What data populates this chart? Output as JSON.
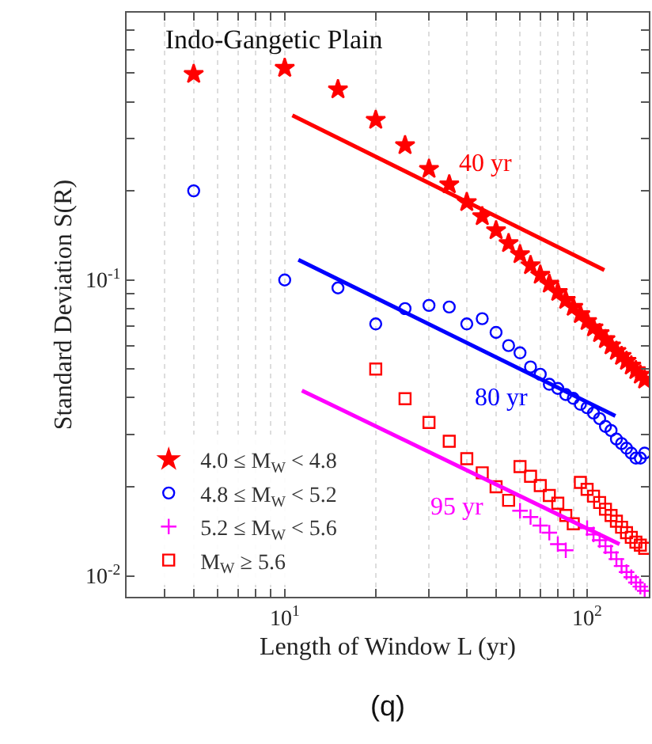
{
  "chart_data": {
    "type": "scatter",
    "title": "Indo-Gangetic Plain",
    "xlabel": "Length of Window L (yr)",
    "ylabel": "Standard Deviation S(R)",
    "log": "xy",
    "grid": "x",
    "legend": "bottom left",
    "xlim": [
      3,
      160
    ],
    "ylim": [
      0.0085,
      0.8
    ],
    "xticks": [
      {
        "value": 3,
        "label": null
      },
      {
        "value": 4,
        "label": null
      },
      {
        "value": 5,
        "label": null
      },
      {
        "value": 6,
        "label": null
      },
      {
        "value": 7,
        "label": null
      },
      {
        "value": 8,
        "label": null
      },
      {
        "value": 9,
        "label": null
      },
      {
        "value": 10,
        "label": "10$^{1}$"
      },
      {
        "value": 20,
        "label": null
      },
      {
        "value": 30,
        "label": null
      },
      {
        "value": 40,
        "label": null
      },
      {
        "value": 50,
        "label": null
      },
      {
        "value": 60,
        "label": null
      },
      {
        "value": 70,
        "label": null
      },
      {
        "value": 80,
        "label": null
      },
      {
        "value": 90,
        "label": null
      },
      {
        "value": 100,
        "label": "10$^{2}$"
      }
    ],
    "yticks": [
      {
        "value": 0.01,
        "label": "10$^{-2}$"
      },
      {
        "value": 0.02,
        "label": null
      },
      {
        "value": 0.03,
        "label": null
      },
      {
        "value": 0.04,
        "label": null
      },
      {
        "value": 0.05,
        "label": null
      },
      {
        "value": 0.06,
        "label": null
      },
      {
        "value": 0.07,
        "label": null
      },
      {
        "value": 0.08,
        "label": null
      },
      {
        "value": 0.09,
        "label": null
      },
      {
        "value": 0.1,
        "label": "10$^{-1}$"
      },
      {
        "value": 0.2,
        "label": null
      },
      {
        "value": 0.3,
        "label": null
      },
      {
        "value": 0.4,
        "label": null
      },
      {
        "value": 0.5,
        "label": null
      },
      {
        "value": 0.6,
        "label": null
      },
      {
        "value": 0.7,
        "label": null
      }
    ],
    "series": [
      {
        "name": "4.0 ≤ M$_{W}$ < 4.8",
        "color": "#ff0000",
        "marker": "star",
        "x": [
          5,
          10,
          15,
          20,
          25,
          30,
          35,
          40,
          45,
          50,
          55,
          60,
          65,
          70,
          75,
          80,
          85,
          90,
          95,
          100,
          105,
          110,
          115,
          120,
          125,
          130,
          135,
          140,
          145,
          150,
          155
        ],
        "values": [
          0.496,
          0.52,
          0.44,
          0.347,
          0.285,
          0.237,
          0.21,
          0.183,
          0.164,
          0.147,
          0.133,
          0.122,
          0.112,
          0.104,
          0.097,
          0.091,
          0.0855,
          0.081,
          0.0765,
          0.0725,
          0.069,
          0.066,
          0.063,
          0.06,
          0.0575,
          0.0553,
          0.0532,
          0.0513,
          0.0495,
          0.0478,
          0.046
        ]
      },
      {
        "name": "4.8 ≤ M$_{W}$ < 5.2",
        "color": "#0000ff",
        "marker": "circle",
        "x": [
          5,
          10,
          15,
          20,
          25,
          30,
          35,
          40,
          45,
          50,
          55,
          60,
          65,
          70,
          75,
          80,
          85,
          90,
          95,
          100,
          105,
          110,
          115,
          120,
          125,
          130,
          135,
          140,
          145,
          150,
          155
        ],
        "values": [
          0.2,
          0.1,
          0.094,
          0.071,
          0.08,
          0.082,
          0.081,
          0.071,
          0.074,
          0.0665,
          0.06,
          0.0567,
          0.0508,
          0.048,
          0.0444,
          0.043,
          0.041,
          0.0398,
          0.038,
          0.037,
          0.0355,
          0.034,
          0.032,
          0.031,
          0.029,
          0.028,
          0.027,
          0.026,
          0.025,
          0.025,
          0.026
        ]
      },
      {
        "name": "5.2 ≤ M$_{W}$ < 5.6",
        "color": "#ff00ff",
        "marker": "cross",
        "x": [
          60,
          65,
          70,
          75,
          80,
          85,
          90,
          95,
          100,
          105,
          110,
          115,
          120,
          125,
          130,
          135,
          140,
          145,
          150,
          155
        ],
        "values": [
          0.0166,
          0.0158,
          0.0148,
          0.014,
          0.0128,
          0.0122,
          null,
          null,
          0.0145,
          0.0138,
          0.0132,
          0.0126,
          0.012,
          0.0114,
          0.0108,
          0.0103,
          0.0099,
          0.0095,
          0.0092,
          0.0089
        ]
      },
      {
        "name": "M$_{W}$ ≥ 5.6",
        "color": "#ff0000",
        "marker": "square",
        "x": [
          20,
          25,
          30,
          35,
          40,
          45,
          50,
          55,
          60,
          65,
          70,
          75,
          80,
          85,
          90,
          95,
          100,
          105,
          110,
          115,
          120,
          125,
          130,
          135,
          140,
          145,
          150,
          155
        ],
        "values": [
          0.05,
          0.0397,
          0.033,
          0.0285,
          0.0249,
          0.0223,
          0.02,
          0.018,
          0.0234,
          0.0217,
          0.0202,
          0.0187,
          0.0176,
          0.016,
          0.015,
          0.0207,
          0.0196,
          0.0186,
          0.0177,
          0.0168,
          0.016,
          0.0153,
          0.0146,
          0.014,
          0.0135,
          0.013,
          0.0127,
          0.0124
        ]
      },
      {
        "type": "line",
        "color": "#ff0000",
        "x": [
          10.6,
          114
        ],
        "values": [
          0.36,
          0.108
        ]
      },
      {
        "type": "line",
        "color": "#0000ff",
        "x": [
          11.1,
          124
        ],
        "values": [
          0.117,
          0.0347
        ]
      },
      {
        "type": "line",
        "color": "#ff00ff",
        "x": [
          11.4,
          128
        ],
        "values": [
          0.0423,
          0.0128
        ]
      }
    ],
    "annotations": [
      "40 yr",
      "80 yr",
      "95 yr",
      "(q)"
    ]
  }
}
